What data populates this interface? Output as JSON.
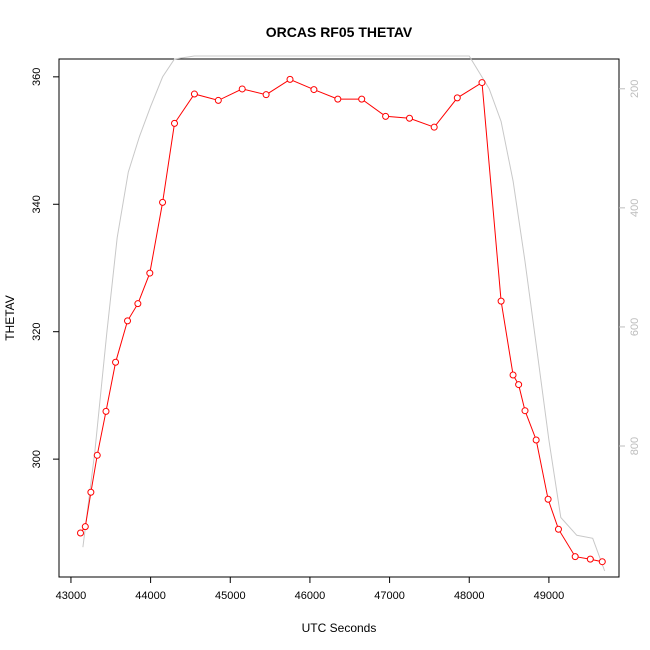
{
  "chart_data": {
    "type": "line",
    "title": "ORCAS RF05 THETAV",
    "xlabel": "UTC Seconds",
    "ylabel": "THETAV",
    "xlim": [
      42850,
      49880
    ],
    "ylim": [
      281.5,
      362.8
    ],
    "x_ticks": [
      43000,
      44000,
      45000,
      46000,
      47000,
      48000,
      49000
    ],
    "x_tick_labels": [
      "43000",
      "44000",
      "45000",
      "46000",
      "47000",
      "48000",
      "49000"
    ],
    "y_ticks": [
      300,
      320,
      340,
      360
    ],
    "y_tick_labels": [
      "300",
      "320",
      "340",
      "360"
    ],
    "y2_reversed": true,
    "y2lim": [
      150,
      1020
    ],
    "y2_ticks": [
      200,
      400,
      600,
      800
    ],
    "y2_tick_labels": [
      "200",
      "400",
      "600",
      "800"
    ],
    "grid": false,
    "series": [
      {
        "axis": "left",
        "color": "#ff0000",
        "markers": "open-circle",
        "x": [
          43120,
          43180,
          43250,
          43330,
          43440,
          43560,
          43710,
          43840,
          43990,
          44150,
          44300,
          44550,
          44850,
          45150,
          45450,
          45750,
          46050,
          46350,
          46650,
          46950,
          47250,
          47560,
          47850,
          48160,
          48400,
          48550,
          48620,
          48700,
          48840,
          48990,
          49120,
          49330,
          49520,
          49670
        ],
        "values": [
          288.4,
          289.4,
          294.8,
          300.6,
          307.5,
          315.2,
          321.7,
          324.4,
          329.2,
          340.3,
          352.7,
          357.3,
          356.3,
          358.1,
          357.2,
          359.6,
          358.0,
          356.5,
          356.5,
          353.8,
          353.5,
          352.1,
          356.7,
          359.1,
          324.8,
          313.2,
          311.7,
          307.6,
          303.0,
          293.7,
          289.0,
          284.7,
          284.3,
          283.9
        ]
      },
      {
        "axis": "right",
        "color": "#c8c8c8",
        "markers": "none",
        "x": [
          43150,
          43300,
          43450,
          43580,
          43720,
          43860,
          44000,
          44150,
          44300,
          44550,
          45000,
          46000,
          47000,
          48000,
          48250,
          48400,
          48550,
          48700,
          48850,
          49000,
          49150,
          49350,
          49550,
          49700
        ],
        "values": [
          970,
          810,
          610,
          450,
          340,
          280,
          230,
          180,
          150,
          145,
          145,
          145,
          145,
          145,
          200,
          255,
          355,
          490,
          640,
          790,
          920,
          950,
          955,
          1010
        ]
      }
    ]
  }
}
